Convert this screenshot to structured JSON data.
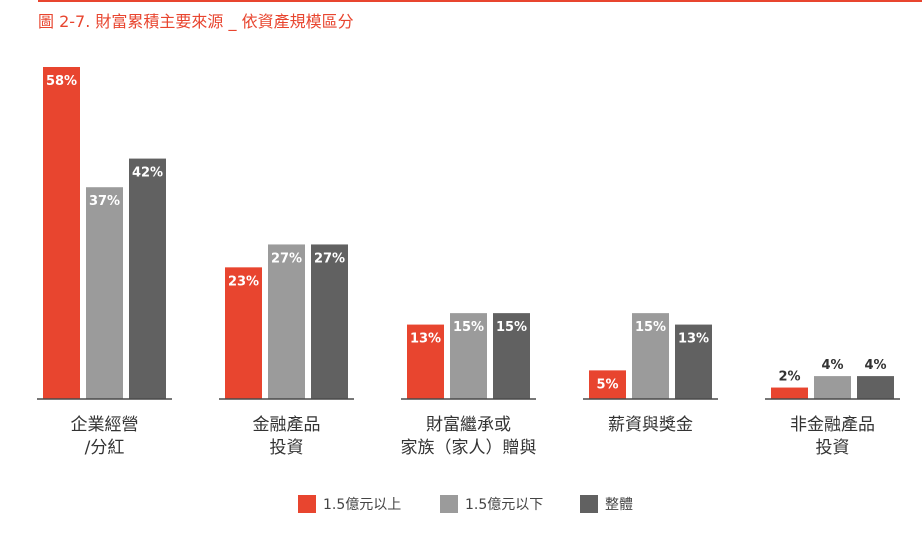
{
  "title": "圖 2-7. 財富累積主要來源 _ 依資產規模區分",
  "colors": {
    "accent": "#e8452f",
    "series_above": "#e8452f",
    "series_below": "#9b9b9b",
    "series_overall": "#616161",
    "label_inside": "#ffffff",
    "label_outside": "#333333",
    "axis": "#4a4a4a"
  },
  "chart_data": {
    "type": "bar",
    "categories": [
      [
        "企業經營",
        "/分紅"
      ],
      [
        "金融產品",
        "投資"
      ],
      [
        "財富繼承或",
        "家族（家人）贈與"
      ],
      [
        "薪資與獎金"
      ],
      [
        "非金融產品",
        "投資"
      ]
    ],
    "series": [
      {
        "name": "1.5億元以上",
        "values": [
          58,
          23,
          13,
          5,
          2
        ]
      },
      {
        "name": "1.5億元以下",
        "values": [
          37,
          27,
          15,
          15,
          4
        ]
      },
      {
        "name": "整體",
        "values": [
          42,
          27,
          15,
          13,
          4
        ]
      }
    ],
    "value_suffix": "%",
    "ylim": [
      0,
      60
    ],
    "grid": false,
    "legend_position": "bottom-center"
  }
}
